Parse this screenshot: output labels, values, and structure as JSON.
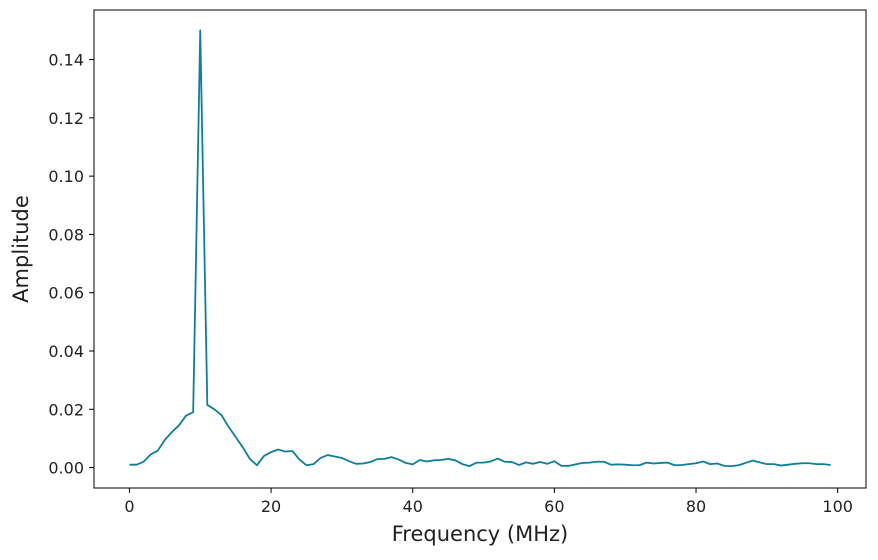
{
  "chart_data": {
    "type": "line",
    "title": "",
    "xlabel": "Frequency (MHz)",
    "ylabel": "Amplitude",
    "xlim": [
      -5,
      104
    ],
    "ylim": [
      -0.007,
      0.157
    ],
    "x_ticks": [
      0,
      20,
      40,
      60,
      80,
      100
    ],
    "x_tick_labels": [
      "0",
      "20",
      "40",
      "60",
      "80",
      "100"
    ],
    "y_ticks": [
      0.0,
      0.02,
      0.04,
      0.06,
      0.08,
      0.1,
      0.12,
      0.14
    ],
    "y_tick_labels": [
      "0.00",
      "0.02",
      "0.04",
      "0.06",
      "0.08",
      "0.10",
      "0.12",
      "0.14"
    ],
    "grid": false,
    "legend": "none",
    "colors": {
      "line": "#0e7f9a",
      "axes": "#000000",
      "text": "#222222",
      "background": "#ffffff"
    },
    "series": [
      {
        "x": [
          0,
          1,
          2,
          3,
          4,
          5,
          6,
          7,
          8,
          9,
          10,
          11,
          12,
          13,
          14,
          15,
          16,
          17,
          18,
          19,
          20,
          21,
          22,
          23,
          24,
          25,
          26,
          27,
          28,
          29,
          30,
          31,
          32,
          33,
          34,
          35,
          36,
          37,
          38,
          39,
          40,
          41,
          42,
          43,
          44,
          45,
          46,
          47,
          48,
          49,
          50,
          51,
          52,
          53,
          54,
          55,
          56,
          57,
          58,
          59,
          60,
          61,
          62,
          63,
          64,
          65,
          66,
          67,
          68,
          69,
          70,
          71,
          72,
          73,
          74,
          75,
          76,
          77,
          78,
          79,
          80,
          81,
          82,
          83,
          84,
          85,
          86,
          87,
          88,
          89,
          90,
          91,
          92,
          93,
          94,
          95,
          96,
          97,
          98,
          99
        ],
        "values": [
          0.001,
          0.001,
          0.002,
          0.0045,
          0.0058,
          0.0095,
          0.0122,
          0.0145,
          0.0178,
          0.019,
          0.15,
          0.0215,
          0.02,
          0.018,
          0.014,
          0.0105,
          0.007,
          0.003,
          0.0008,
          0.004,
          0.0053,
          0.0062,
          0.0055,
          0.0057,
          0.0028,
          0.0008,
          0.0012,
          0.0033,
          0.0043,
          0.0038,
          0.0033,
          0.0022,
          0.0013,
          0.0014,
          0.0019,
          0.0029,
          0.003,
          0.0036,
          0.0028,
          0.0016,
          0.0011,
          0.0026,
          0.0021,
          0.0025,
          0.0026,
          0.003,
          0.0025,
          0.0012,
          0.0005,
          0.0017,
          0.0017,
          0.0021,
          0.0031,
          0.002,
          0.0019,
          0.0009,
          0.0018,
          0.0013,
          0.0019,
          0.0013,
          0.0022,
          0.0006,
          0.0006,
          0.0011,
          0.0016,
          0.0017,
          0.002,
          0.002,
          0.001,
          0.0011,
          0.001,
          0.0008,
          0.0008,
          0.0017,
          0.0014,
          0.0016,
          0.0017,
          0.0008,
          0.0009,
          0.0012,
          0.0015,
          0.0021,
          0.0012,
          0.0014,
          0.0006,
          0.0005,
          0.0008,
          0.0016,
          0.0024,
          0.0018,
          0.0012,
          0.0012,
          0.0007,
          0.001,
          0.0013,
          0.0015,
          0.0015,
          0.0012,
          0.0012,
          0.0009
        ]
      }
    ]
  }
}
